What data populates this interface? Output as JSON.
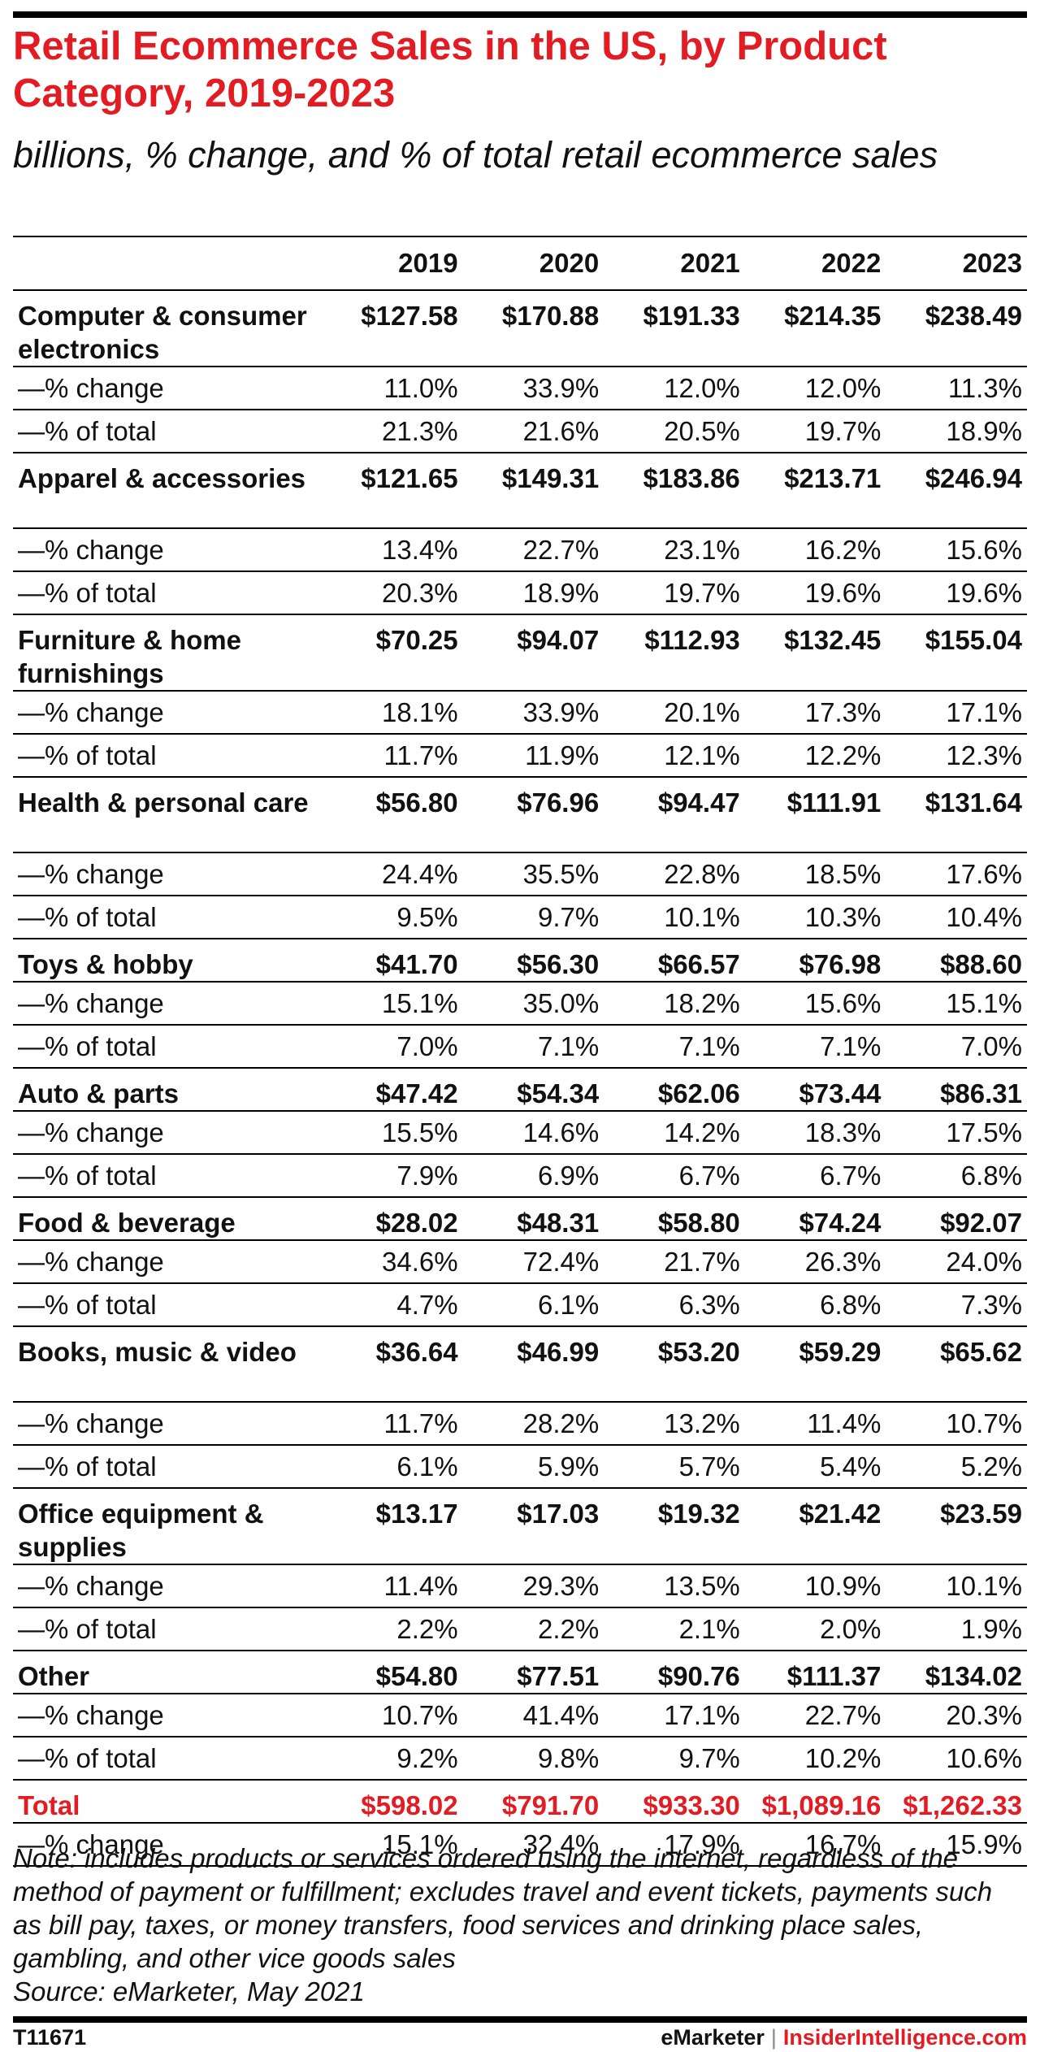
{
  "chart_data": {
    "type": "table",
    "title": "Retail Ecommerce Sales in the US, by Product Category, 2019-2023",
    "subtitle": "billions, % change, and % of total retail ecommerce sales",
    "columns": [
      "2019",
      "2020",
      "2021",
      "2022",
      "2023"
    ],
    "sub_labels": {
      "change": "—% change",
      "total": "—% of total"
    },
    "categories": [
      {
        "name": "Computer & consumer electronics",
        "values": [
          "$127.58",
          "$170.88",
          "$191.33",
          "$214.35",
          "$238.49"
        ],
        "change": [
          "11.0%",
          "33.9%",
          "12.0%",
          "12.0%",
          "11.3%"
        ],
        "share": [
          "21.3%",
          "21.6%",
          "20.5%",
          "19.7%",
          "18.9%"
        ]
      },
      {
        "name": "Apparel & accessories",
        "values": [
          "$121.65",
          "$149.31",
          "$183.86",
          "$213.71",
          "$246.94"
        ],
        "change": [
          "13.4%",
          "22.7%",
          "23.1%",
          "16.2%",
          "15.6%"
        ],
        "share": [
          "20.3%",
          "18.9%",
          "19.7%",
          "19.6%",
          "19.6%"
        ]
      },
      {
        "name": "Furniture & home furnishings",
        "values": [
          "$70.25",
          "$94.07",
          "$112.93",
          "$132.45",
          "$155.04"
        ],
        "change": [
          "18.1%",
          "33.9%",
          "20.1%",
          "17.3%",
          "17.1%"
        ],
        "share": [
          "11.7%",
          "11.9%",
          "12.1%",
          "12.2%",
          "12.3%"
        ]
      },
      {
        "name": "Health & personal care",
        "values": [
          "$56.80",
          "$76.96",
          "$94.47",
          "$111.91",
          "$131.64"
        ],
        "change": [
          "24.4%",
          "35.5%",
          "22.8%",
          "18.5%",
          "17.6%"
        ],
        "share": [
          "9.5%",
          "9.7%",
          "10.1%",
          "10.3%",
          "10.4%"
        ]
      },
      {
        "name": "Toys & hobby",
        "values": [
          "$41.70",
          "$56.30",
          "$66.57",
          "$76.98",
          "$88.60"
        ],
        "change": [
          "15.1%",
          "35.0%",
          "18.2%",
          "15.6%",
          "15.1%"
        ],
        "share": [
          "7.0%",
          "7.1%",
          "7.1%",
          "7.1%",
          "7.0%"
        ]
      },
      {
        "name": "Auto & parts",
        "values": [
          "$47.42",
          "$54.34",
          "$62.06",
          "$73.44",
          "$86.31"
        ],
        "change": [
          "15.5%",
          "14.6%",
          "14.2%",
          "18.3%",
          "17.5%"
        ],
        "share": [
          "7.9%",
          "6.9%",
          "6.7%",
          "6.7%",
          "6.8%"
        ]
      },
      {
        "name": "Food & beverage",
        "values": [
          "$28.02",
          "$48.31",
          "$58.80",
          "$74.24",
          "$92.07"
        ],
        "change": [
          "34.6%",
          "72.4%",
          "21.7%",
          "26.3%",
          "24.0%"
        ],
        "share": [
          "4.7%",
          "6.1%",
          "6.3%",
          "6.8%",
          "7.3%"
        ]
      },
      {
        "name": "Books, music & video",
        "values": [
          "$36.64",
          "$46.99",
          "$53.20",
          "$59.29",
          "$65.62"
        ],
        "change": [
          "11.7%",
          "28.2%",
          "13.2%",
          "11.4%",
          "10.7%"
        ],
        "share": [
          "6.1%",
          "5.9%",
          "5.7%",
          "5.4%",
          "5.2%"
        ]
      },
      {
        "name": "Office equipment & supplies",
        "values": [
          "$13.17",
          "$17.03",
          "$19.32",
          "$21.42",
          "$23.59"
        ],
        "change": [
          "11.4%",
          "29.3%",
          "13.5%",
          "10.9%",
          "10.1%"
        ],
        "share": [
          "2.2%",
          "2.2%",
          "2.1%",
          "2.0%",
          "1.9%"
        ]
      },
      {
        "name": "Other",
        "values": [
          "$54.80",
          "$77.51",
          "$90.76",
          "$111.37",
          "$134.02"
        ],
        "change": [
          "10.7%",
          "41.4%",
          "17.1%",
          "22.7%",
          "20.3%"
        ],
        "share": [
          "9.2%",
          "9.8%",
          "9.7%",
          "10.2%",
          "10.6%"
        ]
      }
    ],
    "total": {
      "name": "Total",
      "values": [
        "$598.02",
        "$791.70",
        "$933.30",
        "$1,089.16",
        "$1,262.33"
      ],
      "change": [
        "15.1%",
        "32.4%",
        "17.9%",
        "16.7%",
        "15.9%"
      ]
    }
  },
  "note": "Note: includes products or services ordered using the internet, regardless of the method of payment or fulfillment; excludes travel and event tickets, payments such as bill pay, taxes, or money transfers, food services and drinking place sales, gambling, and other vice goods sales",
  "source": "Source: eMarketer, May 2021",
  "footer": {
    "chart_id": "T11671",
    "brand_left": "eMarketer",
    "separator": "|",
    "brand_right": "InsiderIntelligence.com"
  },
  "colors": {
    "accent": "#e31b23",
    "text": "#111111",
    "rule": "#000000"
  }
}
